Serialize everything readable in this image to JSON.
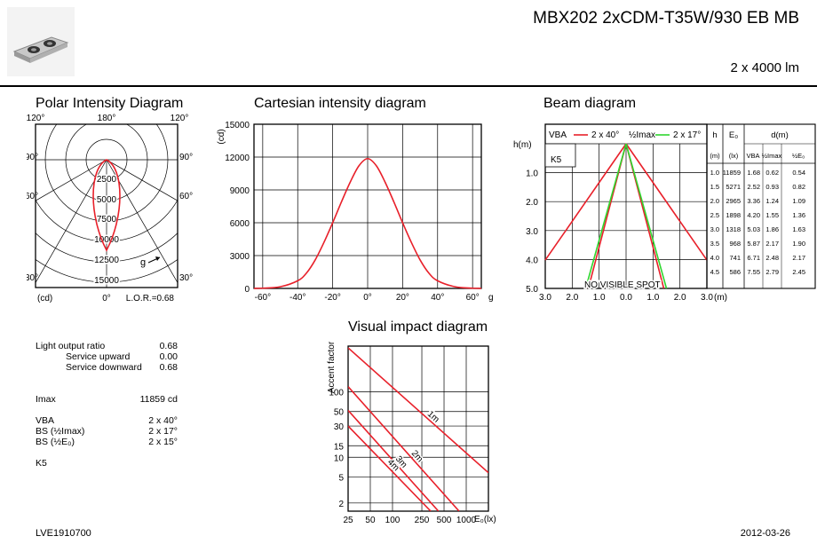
{
  "header": {
    "product": "MBX202 2xCDM-T35W/930 EB MB",
    "lumen": "2 x 4000 lm",
    "image": "luminaire-product-image"
  },
  "polar": {
    "title": "Polar Intensity Diagram",
    "angle_labels": {
      "top_left": "120°",
      "top_center": "180°",
      "top_right": "120°",
      "mid_left": "90°",
      "mid_right": "90°",
      "low_left": "60°",
      "low_right": "60°",
      "bottom_left": "30°",
      "bottom_right": "30°",
      "bottom_center": "0°"
    },
    "unit": "(cd)",
    "lor": "L.O.R.=0.68",
    "ring_labels": [
      "2500",
      "5000",
      "7500",
      "10000",
      "12500",
      "15000"
    ],
    "plane_label": "g"
  },
  "chart_data": [
    {
      "type": "line",
      "title": "Cartesian intensity diagram",
      "ylabel": "(cd)",
      "xlabel": "g",
      "x_ticks": [
        "-60°",
        "-40°",
        "-20°",
        "0°",
        "20°",
        "40°",
        "60°"
      ],
      "y_ticks": [
        "0",
        "3000",
        "6000",
        "9000",
        "12000",
        "15000"
      ],
      "xlim": [
        -65,
        65
      ],
      "ylim": [
        0,
        15000
      ],
      "series": [
        {
          "name": "intensity",
          "x": [
            -65,
            -60,
            -50,
            -40,
            -35,
            -30,
            -25,
            -20,
            -15,
            -10,
            -5,
            0,
            5,
            10,
            15,
            20,
            25,
            30,
            35,
            40,
            50,
            60,
            65
          ],
          "y": [
            0,
            20,
            150,
            700,
            1400,
            2600,
            4200,
            6000,
            7900,
            9700,
            11200,
            11859,
            11200,
            9700,
            7900,
            6000,
            4200,
            2600,
            1400,
            700,
            150,
            20,
            0
          ]
        }
      ]
    },
    {
      "type": "line",
      "title": "Beam diagram",
      "y_unit_label": "h(m)",
      "x_unit_label": "(m)",
      "x_ticks": [
        "3.0",
        "2.0",
        "1.0",
        "0.0",
        "1.0",
        "2.0",
        "3.0"
      ],
      "y_ticks": [
        "1.0",
        "2.0",
        "3.0",
        "4.0",
        "5.0"
      ],
      "legend": [
        "VBA",
        "2 x 40°",
        "½Imax",
        "2 x 17°"
      ],
      "class_label": "K5",
      "annotation": "NO VISIBLE SPOT",
      "series": [
        {
          "name": "2 x 40° outer",
          "color": "#e8202a",
          "half_width_at_5m": 3.73
        },
        {
          "name": "2 x 40° inner",
          "color": "#e8202a",
          "half_width_at_5m": 1.4
        },
        {
          "name": "2 x 17°",
          "color": "#2fd62f",
          "half_width_at_5m": 1.5
        }
      ],
      "table": {
        "headers": [
          "h",
          "E₀",
          "d(m)"
        ],
        "subheaders": [
          "(m)",
          "(lx)",
          "VBA",
          "½Imax",
          "½E₀"
        ],
        "rows": [
          [
            "1.0",
            "11859",
            "1.68",
            "0.62",
            "0.54"
          ],
          [
            "1.5",
            "5271",
            "2.52",
            "0.93",
            "0.82"
          ],
          [
            "2.0",
            "2965",
            "3.36",
            "1.24",
            "1.09"
          ],
          [
            "2.5",
            "1898",
            "4.20",
            "1.55",
            "1.36"
          ],
          [
            "3.0",
            "1318",
            "5.03",
            "1.86",
            "1.63"
          ],
          [
            "3.5",
            "968",
            "5.87",
            "2.17",
            "1.90"
          ],
          [
            "4.0",
            "741",
            "6.71",
            "2.48",
            "2.17"
          ],
          [
            "4.5",
            "586",
            "7.55",
            "2.79",
            "2.45"
          ]
        ]
      }
    },
    {
      "type": "line",
      "title": "Visual impact diagram",
      "ylabel": "Accent factor",
      "xlabel": "E₀(lx)",
      "x_ticks": [
        "25",
        "50",
        "100",
        "250",
        "500",
        "1000"
      ],
      "y_ticks": [
        "2",
        "5",
        "10",
        "15",
        "30",
        "50",
        "100"
      ],
      "xscale": "log",
      "yscale": "log",
      "xlim": [
        25,
        2000
      ],
      "ylim": [
        1.5,
        500
      ],
      "series": [
        {
          "name": "1m",
          "color": "#e8202a",
          "x": [
            25,
            2000
          ],
          "y": [
            470,
            5.8
          ]
        },
        {
          "name": "2m",
          "color": "#e8202a",
          "x": [
            25,
            800
          ],
          "y": [
            120,
            1.5
          ]
        },
        {
          "name": "3m",
          "color": "#e8202a",
          "x": [
            25,
            420
          ],
          "y": [
            52,
            1.5
          ]
        },
        {
          "name": "4m",
          "color": "#e8202a",
          "x": [
            25,
            330
          ],
          "y": [
            30,
            1.5
          ]
        }
      ]
    }
  ],
  "stats": {
    "lor_label": "Light output ratio",
    "lor_value": "0.68",
    "up_label": "Service upward",
    "up_value": "0.00",
    "down_label": "Service downward",
    "down_value": "0.68",
    "imax_label": "Imax",
    "imax_value": "11859 cd",
    "vba_label": "VBA",
    "vba_value": "2 x 40°",
    "bs1_label": "BS (½Imax)",
    "bs1_value": "2 x 17°",
    "bs2_label": "BS (½E₀)",
    "bs2_value": "2 x 15°",
    "class": "K5"
  },
  "footer": {
    "code": "LVE1910700",
    "date": "2012-03-26"
  }
}
